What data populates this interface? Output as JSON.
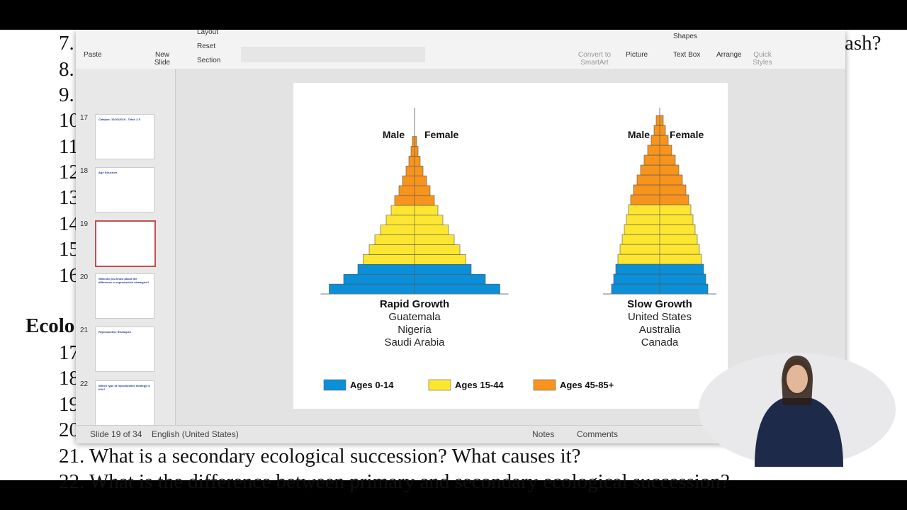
{
  "document": {
    "lines": [
      "7.",
      "8.",
      "9.",
      "10",
      "11",
      "12",
      "13",
      "14",
      "15",
      "16",
      "Ecolo",
      "17",
      "18",
      "19",
      "20",
      "21. What is a secondary ecological succession? What causes it?",
      "22. What is the difference between primary and secondary ecological succession?"
    ],
    "right_fragment": "ash?"
  },
  "ribbon": {
    "paste": "Paste",
    "new_slide": "New Slide",
    "layout": "Layout",
    "reset": "Reset",
    "section": "Section",
    "convert": "Convert to SmartArt",
    "picture": "Picture",
    "shapes": "Shapes",
    "text_box": "Text Box",
    "arrange": "Arrange",
    "quick_styles": "Quick Styles"
  },
  "thumbnails": [
    {
      "number": "17",
      "title": "Catalyst: 10/22/2019 - Total: 2.5"
    },
    {
      "number": "18",
      "title": "Age Structure"
    },
    {
      "number": "19",
      "title": ""
    },
    {
      "number": "20",
      "title": "What do you know about the difference in reproductive strategies?"
    },
    {
      "number": "21",
      "title": "Reproductive Strategies"
    },
    {
      "number": "22",
      "title": "Which type of reproductive strategy is this?"
    }
  ],
  "slide": {
    "male": "Male",
    "female": "Female",
    "left": {
      "title": "Rapid Growth",
      "countries": [
        "Guatemala",
        "Nigeria",
        "Saudi Arabia"
      ]
    },
    "right": {
      "title": "Slow Growth",
      "countries": [
        "United States",
        "Australia",
        "Canada"
      ]
    },
    "legend": [
      {
        "label": "Ages 0-14",
        "color": "#0a8fd8"
      },
      {
        "label": "Ages 15-44",
        "color": "#fde631"
      },
      {
        "label": "Ages 45-85+",
        "color": "#f7941d"
      }
    ]
  },
  "status": {
    "slide": "Slide 19 of 34",
    "language": "English (United States)",
    "notes": "Notes",
    "comments": "Comments"
  }
}
